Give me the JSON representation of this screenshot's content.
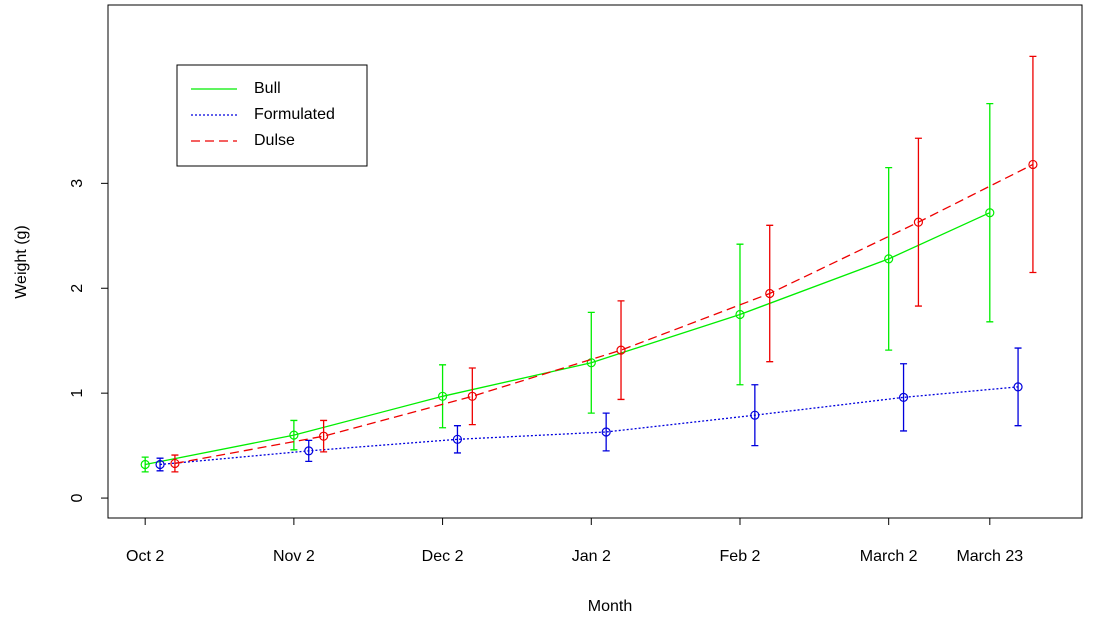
{
  "chart_data": {
    "type": "line",
    "x_label": "Month",
    "y_label": "Weight (g)",
    "xlim": [
      0.75,
      7.3
    ],
    "ylim": [
      -0.19,
      4.7
    ],
    "xticks": [
      {
        "value": 1,
        "label": "Oct 2"
      },
      {
        "value": 2,
        "label": "Nov 2"
      },
      {
        "value": 3,
        "label": "Dec 2"
      },
      {
        "value": 4,
        "label": "Jan 2"
      },
      {
        "value": 5,
        "label": "Feb 2"
      },
      {
        "value": 6,
        "label": "March 2"
      },
      {
        "value": 6.68,
        "label": "March 23"
      }
    ],
    "yticks": [
      0,
      1,
      2,
      3
    ],
    "legend": "top-left",
    "series": [
      {
        "name": "Bull",
        "color": "#00ee00",
        "dash": "solid",
        "x": [
          1,
          2,
          3,
          4,
          5,
          6,
          6.68
        ],
        "values": [
          0.32,
          0.6,
          0.97,
          1.29,
          1.75,
          2.28,
          2.72
        ],
        "errors": [
          0.07,
          0.14,
          0.3,
          0.48,
          0.67,
          0.87,
          1.04
        ]
      },
      {
        "name": "Formulated",
        "color": "#0000dd",
        "dash": "dotted",
        "x": [
          1.1,
          2.1,
          3.1,
          4.1,
          5.1,
          6.1,
          6.87
        ],
        "values": [
          0.32,
          0.45,
          0.56,
          0.63,
          0.79,
          0.96,
          1.06
        ],
        "errors": [
          0.06,
          0.1,
          0.13,
          0.18,
          0.29,
          0.32,
          0.37
        ]
      },
      {
        "name": "Dulse",
        "color": "#ee0000",
        "dash": "dashed",
        "x": [
          1.2,
          2.2,
          3.2,
          4.2,
          5.2,
          6.2,
          6.97
        ],
        "values": [
          0.33,
          0.59,
          0.97,
          1.41,
          1.95,
          2.63,
          3.18
        ],
        "errors": [
          0.08,
          0.15,
          0.27,
          0.47,
          0.65,
          0.8,
          1.03
        ]
      }
    ]
  }
}
